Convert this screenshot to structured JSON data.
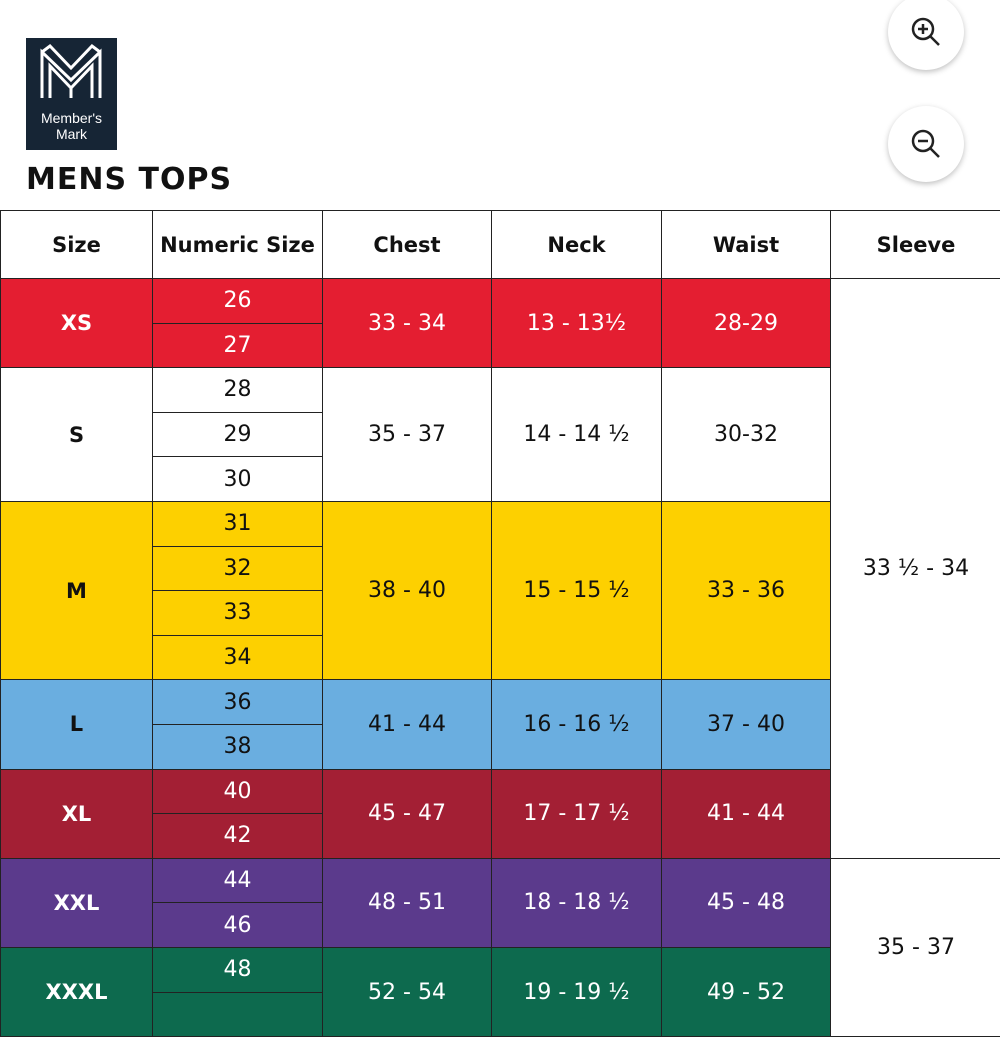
{
  "logo": {
    "text": "Member's Mark"
  },
  "header": {
    "title": "MENS TOPS"
  },
  "table": {
    "columns": [
      "Size",
      "Numeric Size",
      "Chest",
      "Neck",
      "Waist",
      "Sleeve"
    ],
    "rows": [
      {
        "size": "XS",
        "numeric": [
          "26",
          "27"
        ],
        "chest": "33 - 34",
        "neck": "13 - 13½",
        "waist": "28-29",
        "sleeve": "33 ½ - 34",
        "color": "#e41e31",
        "text_color": "#ffffff"
      },
      {
        "size": "S",
        "numeric": [
          "28",
          "29",
          "30"
        ],
        "chest": "35 - 37",
        "neck": "14 - 14 ½",
        "waist": "30-32",
        "color": "#ffffff",
        "text_color": "#111111"
      },
      {
        "size": "M",
        "numeric": [
          "31",
          "32",
          "33",
          "34"
        ],
        "chest": "38 - 40",
        "neck": "15 - 15 ½",
        "waist": "33 - 36",
        "color": "#fdd000",
        "text_color": "#111111"
      },
      {
        "size": "L",
        "numeric": [
          "36",
          "38"
        ],
        "chest": "41 - 44",
        "neck": "16 - 16 ½",
        "waist": "37 - 40",
        "color": "#6aaee0",
        "text_color": "#111111"
      },
      {
        "size": "XL",
        "numeric": [
          "40",
          "42"
        ],
        "chest": "45 - 47",
        "neck": "17 - 17 ½",
        "waist": "41 - 44",
        "color": "#a31f34",
        "text_color": "#ffffff"
      },
      {
        "size": "XXL",
        "numeric": [
          "44",
          "46"
        ],
        "chest": "48 - 51",
        "neck": "18 - 18 ½",
        "waist": "45 - 48",
        "sleeve": "35 - 37",
        "color": "#5b3a8c",
        "text_color": "#ffffff"
      },
      {
        "size": "XXXL",
        "numeric": [
          "48"
        ],
        "chest": "52 - 54",
        "neck": "19 - 19 ½",
        "waist": "49 - 52",
        "color": "#0d6a4e",
        "text_color": "#ffffff"
      }
    ]
  }
}
